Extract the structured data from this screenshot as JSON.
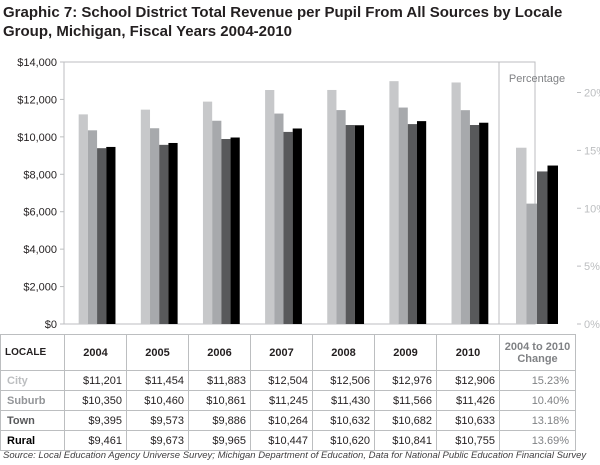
{
  "title": "Graphic 7: School District Total Revenue per Pupil From All Sources by Locale Group, Michigan, Fiscal Years 2004-2010",
  "chart_data": [
    {
      "type": "bar",
      "title": "Graphic 7: School District Total Revenue per Pupil From All Sources by Locale Group, Michigan, Fiscal Years 2004-2010",
      "categories": [
        "2004",
        "2005",
        "2006",
        "2007",
        "2008",
        "2009",
        "2010"
      ],
      "series": [
        {
          "name": "City",
          "color": "#c7c8ca",
          "values": [
            11201,
            11454,
            11883,
            12504,
            12506,
            12976,
            12906
          ]
        },
        {
          "name": "Suburb",
          "color": "#a7a9ac",
          "values": [
            10350,
            10460,
            10861,
            11245,
            11430,
            11566,
            11426
          ]
        },
        {
          "name": "Town",
          "color": "#58595b",
          "values": [
            9395,
            9573,
            9886,
            10264,
            10632,
            10682,
            10633
          ]
        },
        {
          "name": "Rural",
          "color": "#000000",
          "values": [
            9461,
            9673,
            9965,
            10447,
            10620,
            10841,
            10755
          ]
        }
      ],
      "ylim": [
        0,
        14000
      ],
      "yticks": [
        0,
        2000,
        4000,
        6000,
        8000,
        10000,
        12000,
        14000
      ],
      "ytick_labels": [
        "$0",
        "$2,000",
        "$4,000",
        "$6,000",
        "$8,000",
        "$10,000",
        "$12,000",
        "$14,000"
      ],
      "xlabel": "",
      "ylabel": "",
      "grid": false
    },
    {
      "type": "bar",
      "title": "Percentage",
      "categories": [
        "City",
        "Suburb",
        "Town",
        "Rural"
      ],
      "values": [
        15.23,
        10.4,
        13.18,
        13.69
      ],
      "colors": [
        "#c7c8ca",
        "#a7a9ac",
        "#58595b",
        "#000000"
      ],
      "ylim": [
        0,
        20
      ],
      "yticks": [
        0,
        5,
        10,
        15,
        20
      ],
      "ytick_labels": [
        "0%",
        "5%",
        "10%",
        "15%",
        "20%"
      ],
      "xlabel": "2004 to 2010 Change",
      "grid": false
    }
  ],
  "table": {
    "locale_header": "LOCALE",
    "years": [
      "2004",
      "2005",
      "2006",
      "2007",
      "2008",
      "2009",
      "2010"
    ],
    "change_header": "2004 to 2010 Change",
    "rows": [
      {
        "locale": "City",
        "color": "#bcbec0",
        "values": [
          "$11,201",
          "$11,454",
          "$11,883",
          "$12,504",
          "$12,506",
          "$12,976",
          "$12,906"
        ],
        "change": "15.23%"
      },
      {
        "locale": "Suburb",
        "color": "#939598",
        "values": [
          "$10,350",
          "$10,460",
          "$10,861",
          "$11,245",
          "$11,430",
          "$11,566",
          "$11,426"
        ],
        "change": "10.40%"
      },
      {
        "locale": "Town",
        "color": "#58595b",
        "values": [
          "$9,395",
          "$9,573",
          "$9,886",
          "$10,264",
          "$10,632",
          "$10,682",
          "$10,633"
        ],
        "change": "13.18%"
      },
      {
        "locale": "Rural",
        "color": "#000000",
        "values": [
          "$9,461",
          "$9,673",
          "$9,965",
          "$10,447",
          "$10,620",
          "$10,841",
          "$10,755"
        ],
        "change": "13.69%"
      }
    ]
  },
  "source": "Source: Local Education Agency Universe Survey; Michigan Department of Education, Data for National Public Education Financial Survey"
}
